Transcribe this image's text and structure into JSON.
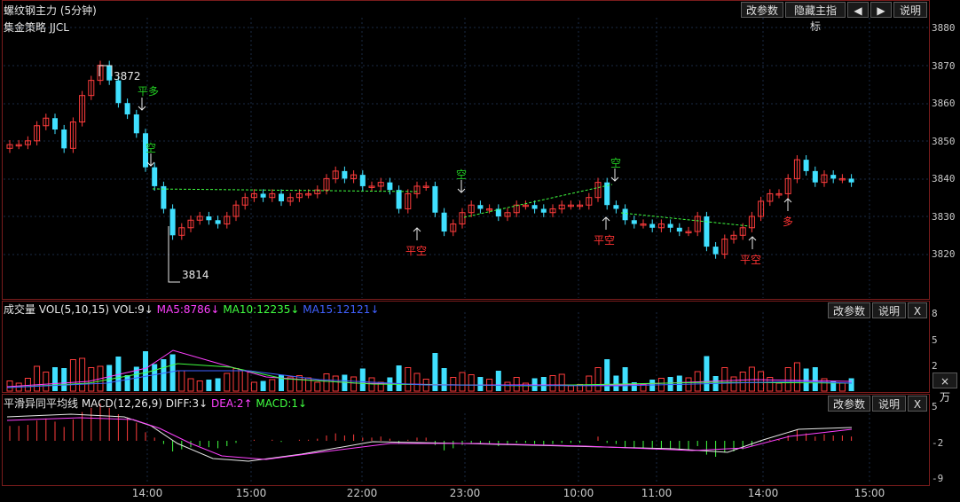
{
  "header": {
    "title": "螺纹钢主力 (5分钟)",
    "strategy": "集金策略 JJCL",
    "buttons": {
      "params": "改参数",
      "hide_main": "隐藏主指标",
      "prev": "◀",
      "next": "▶",
      "help": "说明"
    }
  },
  "main_axis": {
    "ticks": [
      "3880",
      "3870",
      "3860",
      "3850",
      "3840",
      "3830",
      "3820"
    ]
  },
  "annotations": {
    "high": "3872",
    "low": "3814",
    "signals": [
      {
        "text": "平多",
        "color": "#22cc22"
      },
      {
        "text": "空",
        "color": "#22cc22"
      },
      {
        "text": "平空",
        "color": "#ff3333"
      },
      {
        "text": "空",
        "color": "#22cc22"
      },
      {
        "text": "空",
        "color": "#22cc22"
      },
      {
        "text": "平空",
        "color": "#ff3333"
      },
      {
        "text": "平空",
        "color": "#ff3333"
      },
      {
        "text": "多",
        "color": "#ff3333"
      }
    ]
  },
  "volume_panel": {
    "title": "成交量 VOL(5,10,15)",
    "vol": "VOL:9↓",
    "ma5": "MA5:8786↓",
    "ma10": "MA10:12235↓",
    "ma15": "MA15:12121↓",
    "buttons": {
      "params": "改参数",
      "help": "说明",
      "close": "X"
    },
    "ticks": [
      "8",
      "5",
      "2"
    ],
    "unit": "×万"
  },
  "macd_panel": {
    "title": "平滑异同平均线 MACD(12,26,9)",
    "diff": "DIFF:3↓",
    "dea": "DEA:2↑",
    "macd": "MACD:1↓",
    "buttons": {
      "params": "改参数",
      "help": "说明",
      "close": "X"
    },
    "ticks": [
      "5",
      "-2",
      "-9"
    ]
  },
  "time_axis": {
    "labels": [
      "14:00",
      "15:00",
      "22:00",
      "23:00",
      "10:00",
      "11:00",
      "14:00",
      "15:00"
    ]
  },
  "colors": {
    "up": "#ff3c3c",
    "down": "#40e0ff",
    "ma5": "#ff40ff",
    "ma10": "#40ff40",
    "ma15": "#4060ff",
    "dea": "#ff40ff"
  }
}
